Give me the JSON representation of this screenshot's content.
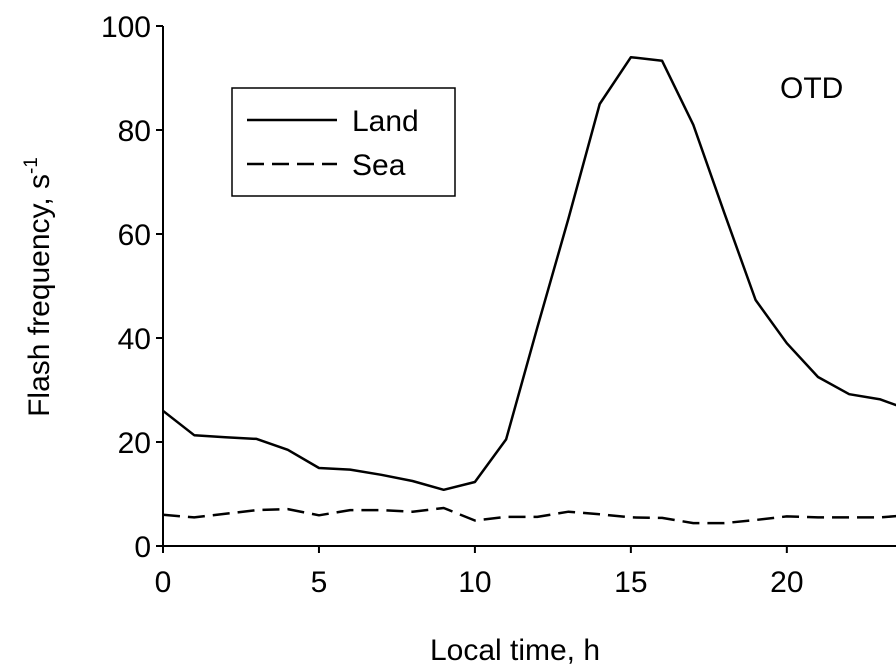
{
  "chart_data": {
    "type": "line",
    "annotation": "OTD",
    "xlabel": "Local time, h",
    "ylabel_main": "Flash frequency, s",
    "ylabel_sup": "-1",
    "xlim": [
      0,
      23.5
    ],
    "ylim": [
      0,
      100
    ],
    "x_ticks": [
      0,
      5,
      10,
      15,
      20
    ],
    "x_tick_labels": [
      "0",
      "5",
      "10",
      "15",
      "20"
    ],
    "y_ticks": [
      0,
      20,
      40,
      60,
      80,
      100
    ],
    "y_tick_labels": [
      "0",
      "20",
      "40",
      "60",
      "80",
      "100"
    ],
    "grid": false,
    "legend_position": "top-left",
    "series": [
      {
        "name": "Land",
        "style": "solid",
        "x": [
          0,
          1,
          2,
          3,
          4,
          5,
          6,
          7,
          8,
          9,
          10,
          11,
          12,
          13,
          14,
          15,
          16,
          17,
          18,
          19,
          20,
          21,
          22,
          23,
          24
        ],
        "values": [
          26,
          21.3,
          20.9,
          20.6,
          18.5,
          15.0,
          14.7,
          13.7,
          12.5,
          10.8,
          12.3,
          20.5,
          42,
          63,
          85,
          94,
          93.3,
          81,
          64,
          47.3,
          39,
          32.5,
          29.2,
          28.2,
          26
        ]
      },
      {
        "name": "Sea",
        "style": "dashed",
        "x": [
          0,
          1,
          2,
          3,
          4,
          5,
          6,
          7,
          8,
          9,
          10,
          11,
          12,
          13,
          14,
          15,
          16,
          17,
          18,
          19,
          20,
          21,
          22,
          23,
          24
        ],
        "values": [
          6.0,
          5.5,
          6.2,
          6.9,
          7.1,
          5.9,
          6.9,
          6.9,
          6.6,
          7.3,
          4.9,
          5.6,
          5.6,
          6.6,
          6.1,
          5.5,
          5.4,
          4.4,
          4.4,
          5.0,
          5.7,
          5.5,
          5.5,
          5.5,
          6.0
        ]
      }
    ]
  }
}
